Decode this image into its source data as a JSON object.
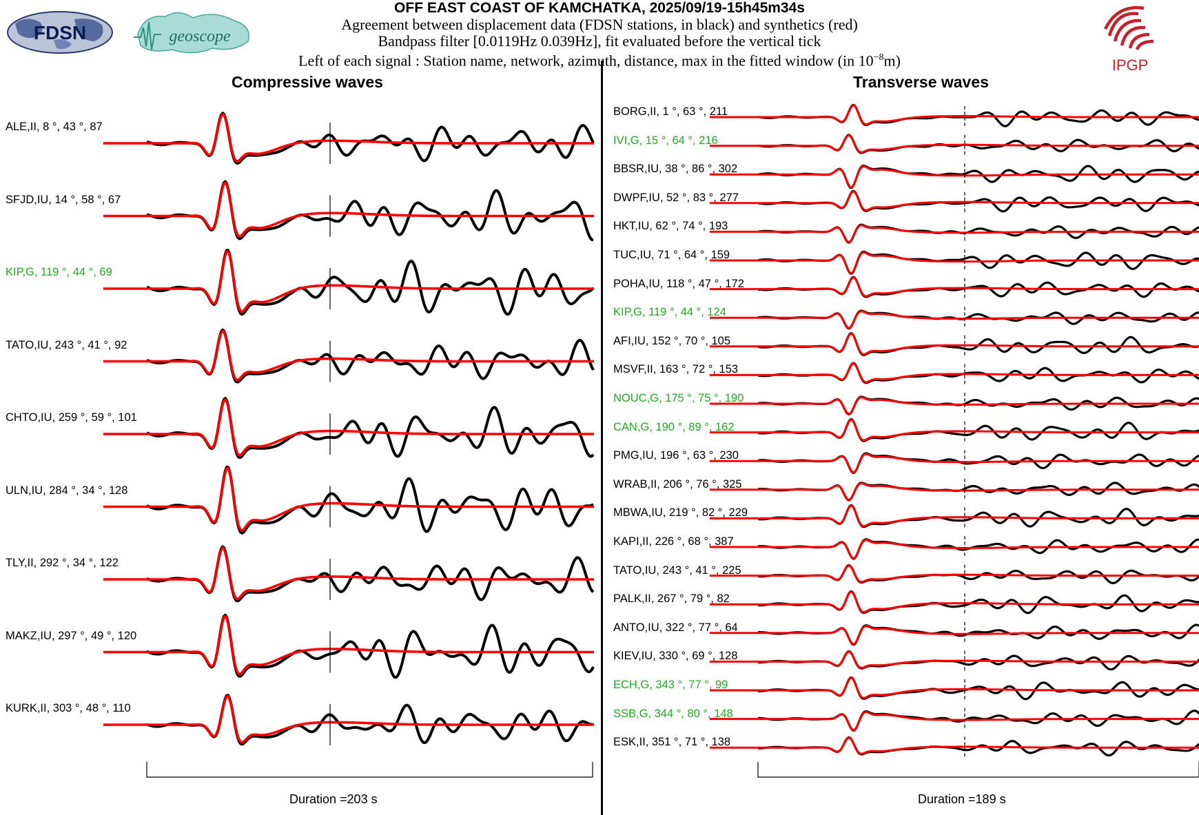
{
  "header": {
    "title": "OFF EAST COAST OF KAMCHATKA, 2025/09/19-15h45m34s",
    "line1": "Agreement between displacement data (FDSN stations, in black) and synthetics (red)",
    "line2": "Bandpass filter [0.0119Hz 0.039Hz], fit evaluated before the vertical tick",
    "line3_prefix": "Left of each signal : Station name, network, azimuth, distance, max in the fitted window (in 10",
    "line3_exp": "−8",
    "line3_suffix": "m)"
  },
  "logos": {
    "fdsn": "FDSN",
    "geoscope": "geoscope",
    "ipgp": "IPGP"
  },
  "colors": {
    "data": "#000000",
    "synthetic": "#ff0000",
    "geoscope_station": "#22aa22",
    "ipgp_red": "#c8202a"
  },
  "chart_data": [
    {
      "type": "line",
      "title": "Compressive waves",
      "duration_label": "Duration =203 s",
      "series_legend": [
        "displacement data (black)",
        "synthetics (red)"
      ],
      "stations": [
        {
          "label": "ALE,II, 8 °, 43 °, 87",
          "geoscope": false
        },
        {
          "label": "SFJD,IU, 14 °, 58 °, 67",
          "geoscope": false
        },
        {
          "label": "KIP,G, 119 °, 44 °, 69",
          "geoscope": true
        },
        {
          "label": "TATO,IU, 243 °, 41 °, 92",
          "geoscope": false
        },
        {
          "label": "CHTO,IU, 259 °, 59 °, 101",
          "geoscope": false
        },
        {
          "label": "ULN,IU, 284 °, 34 °, 128",
          "geoscope": false
        },
        {
          "label": "TLY,II, 292 °, 34 °, 122",
          "geoscope": false
        },
        {
          "label": "MAKZ,IU, 297 °, 49 °, 120",
          "geoscope": false
        },
        {
          "label": "KURK,II, 303 °, 48 °, 110",
          "geoscope": false
        }
      ]
    },
    {
      "type": "line",
      "title": "Transverse waves",
      "duration_label": "Duration =189 s",
      "series_legend": [
        "displacement data (black)",
        "synthetics (red)"
      ],
      "stations": [
        {
          "label": "BORG,II, 1 °, 63 °, 211",
          "geoscope": false
        },
        {
          "label": "IVI,G, 15 °, 64 °, 216",
          "geoscope": true
        },
        {
          "label": "BBSR,IU, 38 °, 86 °, 302",
          "geoscope": false
        },
        {
          "label": "DWPF,IU, 52 °, 83 °, 277",
          "geoscope": false
        },
        {
          "label": "HKT,IU, 62 °, 74 °, 193",
          "geoscope": false
        },
        {
          "label": "TUC,IU, 71 °, 64 °, 159",
          "geoscope": false
        },
        {
          "label": "POHA,IU, 118 °, 47 °, 172",
          "geoscope": false
        },
        {
          "label": "KIP,G, 119 °, 44 °, 124",
          "geoscope": true
        },
        {
          "label": "AFI,IU, 152 °, 70 °, 105",
          "geoscope": false
        },
        {
          "label": "MSVF,II, 163 °, 72 °, 153",
          "geoscope": false
        },
        {
          "label": "NOUC,G, 175 °, 75 °, 190",
          "geoscope": true
        },
        {
          "label": "CAN,G, 190 °, 89 °, 162",
          "geoscope": true
        },
        {
          "label": "PMG,IU, 196 °, 63 °, 230",
          "geoscope": false
        },
        {
          "label": "WRAB,II, 206 °, 76 °, 325",
          "geoscope": false
        },
        {
          "label": "MBWA,IU, 219 °, 82 °, 229",
          "geoscope": false
        },
        {
          "label": "KAPI,II, 226 °, 68 °, 387",
          "geoscope": false
        },
        {
          "label": "TATO,IU, 243 °, 41 °, 225",
          "geoscope": false
        },
        {
          "label": "PALK,II, 267 °, 79 °, 82",
          "geoscope": false
        },
        {
          "label": "ANTO,IU, 322 °, 77 °, 64",
          "geoscope": false
        },
        {
          "label": "KIEV,IU, 330 °, 69 °, 128",
          "geoscope": false
        },
        {
          "label": "ECH,G, 343 °, 77 °, 99",
          "geoscope": true
        },
        {
          "label": "SSB,G, 344 °, 80 °, 148",
          "geoscope": true
        },
        {
          "label": "ESK,II, 351 °, 71 °, 138",
          "geoscope": false
        }
      ]
    }
  ]
}
